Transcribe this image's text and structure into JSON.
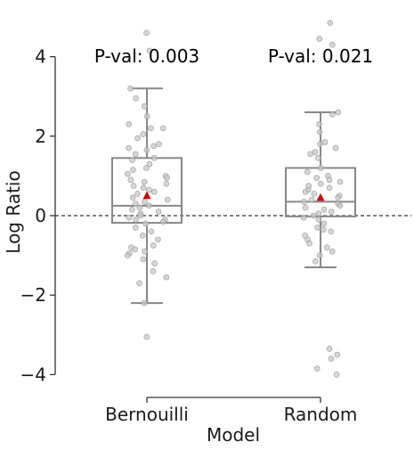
{
  "chart_data": {
    "type": "box",
    "ylabel": "Log Ratio",
    "xlabel": "Model",
    "ylim": [
      -4.5,
      4.8
    ],
    "yticks": [
      4,
      2,
      0,
      -2,
      -4
    ],
    "ytick_labels": [
      "4",
      "2",
      "0",
      "−2",
      "−4"
    ],
    "reference_line_y": 0,
    "categories": [
      "Bernouilli",
      "Random"
    ],
    "annotations": [
      "P-val: 0.003",
      "P-val: 0.021"
    ],
    "box_color": "#888888",
    "point_color": "#c8c8c8",
    "mean_color": "#cc0000",
    "boxes": [
      {
        "name": "Bernouilli",
        "whisker_low": -2.2,
        "q1": -0.18,
        "median": 0.25,
        "q3": 1.45,
        "whisker_high": 3.2,
        "mean": 0.5,
        "points": [
          4.6,
          4.15,
          3.2,
          2.95,
          2.75,
          2.5,
          2.3,
          2.2,
          2.2,
          2.05,
          1.95,
          1.8,
          1.75,
          1.7,
          1.65,
          1.55,
          1.45,
          1.4,
          1.3,
          1.2,
          1.15,
          1.05,
          1.0,
          0.95,
          0.9,
          0.85,
          0.8,
          0.75,
          0.7,
          0.65,
          0.6,
          0.55,
          0.45,
          0.4,
          0.35,
          0.3,
          0.25,
          0.2,
          0.15,
          0.1,
          0.05,
          0.0,
          -0.05,
          -0.1,
          -0.1,
          -0.15,
          -0.2,
          -0.3,
          -0.4,
          -0.5,
          -0.6,
          -0.75,
          -0.8,
          -0.85,
          -0.9,
          -0.95,
          -1.0,
          -1.1,
          -1.2,
          -1.4,
          -1.55,
          -1.7,
          -2.2,
          -3.05
        ]
      },
      {
        "name": "Random",
        "whisker_low": -1.3,
        "q1": -0.02,
        "median": 0.35,
        "q3": 1.2,
        "whisker_high": 2.6,
        "mean": 0.45,
        "points": [
          4.85,
          4.45,
          4.3,
          2.6,
          2.55,
          2.3,
          2.1,
          1.85,
          1.8,
          1.7,
          1.6,
          1.55,
          1.45,
          1.2,
          1.1,
          1.0,
          0.95,
          0.9,
          0.85,
          0.8,
          0.75,
          0.7,
          0.65,
          0.6,
          0.55,
          0.5,
          0.45,
          0.4,
          0.35,
          0.3,
          0.25,
          0.2,
          0.15,
          0.1,
          0.05,
          0.0,
          -0.05,
          -0.1,
          -0.2,
          -0.3,
          -0.35,
          -0.4,
          -0.5,
          -0.6,
          -0.7,
          -0.8,
          -0.9,
          -1.0,
          -1.15,
          -3.35,
          -3.5,
          -3.6,
          -3.85,
          -4.0
        ]
      }
    ]
  }
}
